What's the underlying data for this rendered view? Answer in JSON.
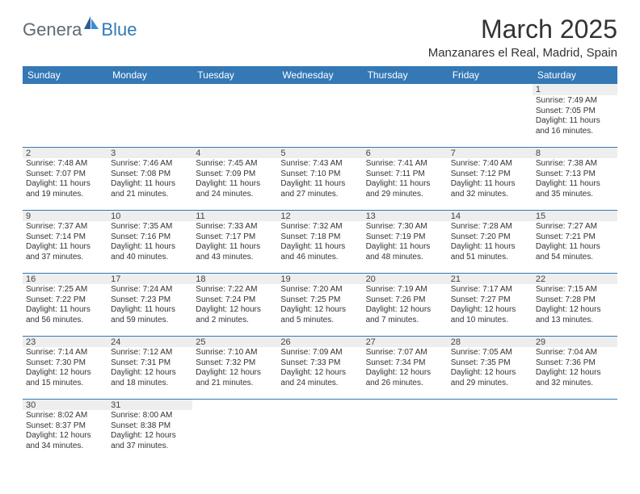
{
  "brand": {
    "general": "Genera",
    "blue": "Blue"
  },
  "title": "March 2025",
  "location": "Manzanares el Real, Madrid, Spain",
  "colors": {
    "header_bg": "#3478b5",
    "daynum_bg": "#eeeeee",
    "border": "#3478b5",
    "text": "#333333",
    "logo_gray": "#5f6b74",
    "logo_blue": "#3478b5"
  },
  "dow": [
    "Sunday",
    "Monday",
    "Tuesday",
    "Wednesday",
    "Thursday",
    "Friday",
    "Saturday"
  ],
  "weeks": [
    [
      null,
      null,
      null,
      null,
      null,
      null,
      {
        "n": "1",
        "sr": "Sunrise: 7:49 AM",
        "ss": "Sunset: 7:05 PM",
        "dl": "Daylight: 11 hours and 16 minutes."
      }
    ],
    [
      {
        "n": "2",
        "sr": "Sunrise: 7:48 AM",
        "ss": "Sunset: 7:07 PM",
        "dl": "Daylight: 11 hours and 19 minutes."
      },
      {
        "n": "3",
        "sr": "Sunrise: 7:46 AM",
        "ss": "Sunset: 7:08 PM",
        "dl": "Daylight: 11 hours and 21 minutes."
      },
      {
        "n": "4",
        "sr": "Sunrise: 7:45 AM",
        "ss": "Sunset: 7:09 PM",
        "dl": "Daylight: 11 hours and 24 minutes."
      },
      {
        "n": "5",
        "sr": "Sunrise: 7:43 AM",
        "ss": "Sunset: 7:10 PM",
        "dl": "Daylight: 11 hours and 27 minutes."
      },
      {
        "n": "6",
        "sr": "Sunrise: 7:41 AM",
        "ss": "Sunset: 7:11 PM",
        "dl": "Daylight: 11 hours and 29 minutes."
      },
      {
        "n": "7",
        "sr": "Sunrise: 7:40 AM",
        "ss": "Sunset: 7:12 PM",
        "dl": "Daylight: 11 hours and 32 minutes."
      },
      {
        "n": "8",
        "sr": "Sunrise: 7:38 AM",
        "ss": "Sunset: 7:13 PM",
        "dl": "Daylight: 11 hours and 35 minutes."
      }
    ],
    [
      {
        "n": "9",
        "sr": "Sunrise: 7:37 AM",
        "ss": "Sunset: 7:14 PM",
        "dl": "Daylight: 11 hours and 37 minutes."
      },
      {
        "n": "10",
        "sr": "Sunrise: 7:35 AM",
        "ss": "Sunset: 7:16 PM",
        "dl": "Daylight: 11 hours and 40 minutes."
      },
      {
        "n": "11",
        "sr": "Sunrise: 7:33 AM",
        "ss": "Sunset: 7:17 PM",
        "dl": "Daylight: 11 hours and 43 minutes."
      },
      {
        "n": "12",
        "sr": "Sunrise: 7:32 AM",
        "ss": "Sunset: 7:18 PM",
        "dl": "Daylight: 11 hours and 46 minutes."
      },
      {
        "n": "13",
        "sr": "Sunrise: 7:30 AM",
        "ss": "Sunset: 7:19 PM",
        "dl": "Daylight: 11 hours and 48 minutes."
      },
      {
        "n": "14",
        "sr": "Sunrise: 7:28 AM",
        "ss": "Sunset: 7:20 PM",
        "dl": "Daylight: 11 hours and 51 minutes."
      },
      {
        "n": "15",
        "sr": "Sunrise: 7:27 AM",
        "ss": "Sunset: 7:21 PM",
        "dl": "Daylight: 11 hours and 54 minutes."
      }
    ],
    [
      {
        "n": "16",
        "sr": "Sunrise: 7:25 AM",
        "ss": "Sunset: 7:22 PM",
        "dl": "Daylight: 11 hours and 56 minutes."
      },
      {
        "n": "17",
        "sr": "Sunrise: 7:24 AM",
        "ss": "Sunset: 7:23 PM",
        "dl": "Daylight: 11 hours and 59 minutes."
      },
      {
        "n": "18",
        "sr": "Sunrise: 7:22 AM",
        "ss": "Sunset: 7:24 PM",
        "dl": "Daylight: 12 hours and 2 minutes."
      },
      {
        "n": "19",
        "sr": "Sunrise: 7:20 AM",
        "ss": "Sunset: 7:25 PM",
        "dl": "Daylight: 12 hours and 5 minutes."
      },
      {
        "n": "20",
        "sr": "Sunrise: 7:19 AM",
        "ss": "Sunset: 7:26 PM",
        "dl": "Daylight: 12 hours and 7 minutes."
      },
      {
        "n": "21",
        "sr": "Sunrise: 7:17 AM",
        "ss": "Sunset: 7:27 PM",
        "dl": "Daylight: 12 hours and 10 minutes."
      },
      {
        "n": "22",
        "sr": "Sunrise: 7:15 AM",
        "ss": "Sunset: 7:28 PM",
        "dl": "Daylight: 12 hours and 13 minutes."
      }
    ],
    [
      {
        "n": "23",
        "sr": "Sunrise: 7:14 AM",
        "ss": "Sunset: 7:30 PM",
        "dl": "Daylight: 12 hours and 15 minutes."
      },
      {
        "n": "24",
        "sr": "Sunrise: 7:12 AM",
        "ss": "Sunset: 7:31 PM",
        "dl": "Daylight: 12 hours and 18 minutes."
      },
      {
        "n": "25",
        "sr": "Sunrise: 7:10 AM",
        "ss": "Sunset: 7:32 PM",
        "dl": "Daylight: 12 hours and 21 minutes."
      },
      {
        "n": "26",
        "sr": "Sunrise: 7:09 AM",
        "ss": "Sunset: 7:33 PM",
        "dl": "Daylight: 12 hours and 24 minutes."
      },
      {
        "n": "27",
        "sr": "Sunrise: 7:07 AM",
        "ss": "Sunset: 7:34 PM",
        "dl": "Daylight: 12 hours and 26 minutes."
      },
      {
        "n": "28",
        "sr": "Sunrise: 7:05 AM",
        "ss": "Sunset: 7:35 PM",
        "dl": "Daylight: 12 hours and 29 minutes."
      },
      {
        "n": "29",
        "sr": "Sunrise: 7:04 AM",
        "ss": "Sunset: 7:36 PM",
        "dl": "Daylight: 12 hours and 32 minutes."
      }
    ],
    [
      {
        "n": "30",
        "sr": "Sunrise: 8:02 AM",
        "ss": "Sunset: 8:37 PM",
        "dl": "Daylight: 12 hours and 34 minutes."
      },
      {
        "n": "31",
        "sr": "Sunrise: 8:00 AM",
        "ss": "Sunset: 8:38 PM",
        "dl": "Daylight: 12 hours and 37 minutes."
      },
      null,
      null,
      null,
      null,
      null
    ]
  ]
}
